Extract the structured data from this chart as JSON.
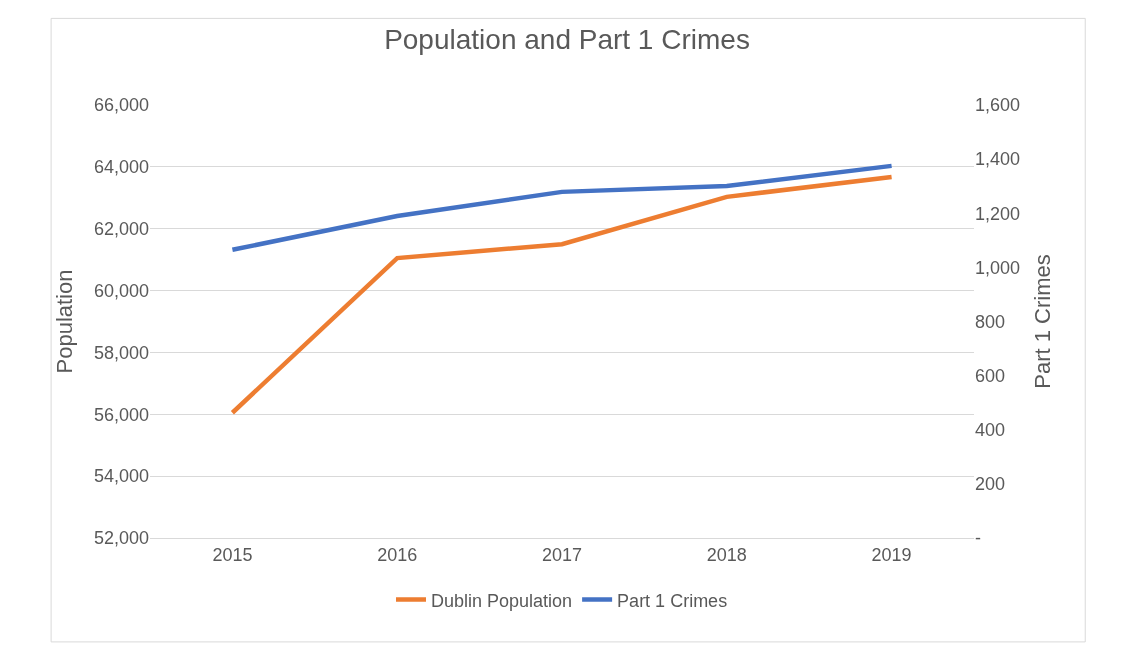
{
  "chart_data": {
    "type": "line",
    "title": "Population and Part 1 Crimes",
    "ylabel": "Population",
    "y2label": "Part 1 Crimes",
    "categories": [
      "2015",
      "2016",
      "2017",
      "2018",
      "2019"
    ],
    "series": [
      {
        "name": "Dublin Population",
        "color": "#ed7d31",
        "values": [
          56050,
          61050,
          61500,
          63030,
          63670
        ]
      },
      {
        "name": "Part 1 Crimes",
        "color": "#4472c4",
        "values": [
          1065,
          1190,
          1279,
          1301,
          1375
        ],
        "axis": "y2"
      }
    ],
    "ylim": [
      52000,
      66000
    ],
    "yticks": [
      {
        "value": 52000,
        "label": "52,000"
      },
      {
        "value": 54000,
        "label": "54,000"
      },
      {
        "value": 56000,
        "label": "56,000"
      },
      {
        "value": 58000,
        "label": "58,000"
      },
      {
        "value": 60000,
        "label": "60,000"
      },
      {
        "value": 62000,
        "label": "62,000"
      },
      {
        "value": 64000,
        "label": "64,000"
      },
      {
        "value": 66000,
        "label": "66,000"
      }
    ],
    "y2lim": [
      0,
      1600
    ],
    "y2ticks": [
      {
        "value": 0,
        "label": "-"
      },
      {
        "value": 200,
        "label": "200"
      },
      {
        "value": 400,
        "label": "400"
      },
      {
        "value": 600,
        "label": "600"
      },
      {
        "value": 800,
        "label": "800"
      },
      {
        "value": 1000,
        "label": "1,000"
      },
      {
        "value": 1200,
        "label": "1,200"
      },
      {
        "value": 1400,
        "label": "1,400"
      },
      {
        "value": 1600,
        "label": "1,600"
      }
    ],
    "grid": "y",
    "legend": "bottom",
    "marker": "none",
    "line_style": "solid"
  }
}
